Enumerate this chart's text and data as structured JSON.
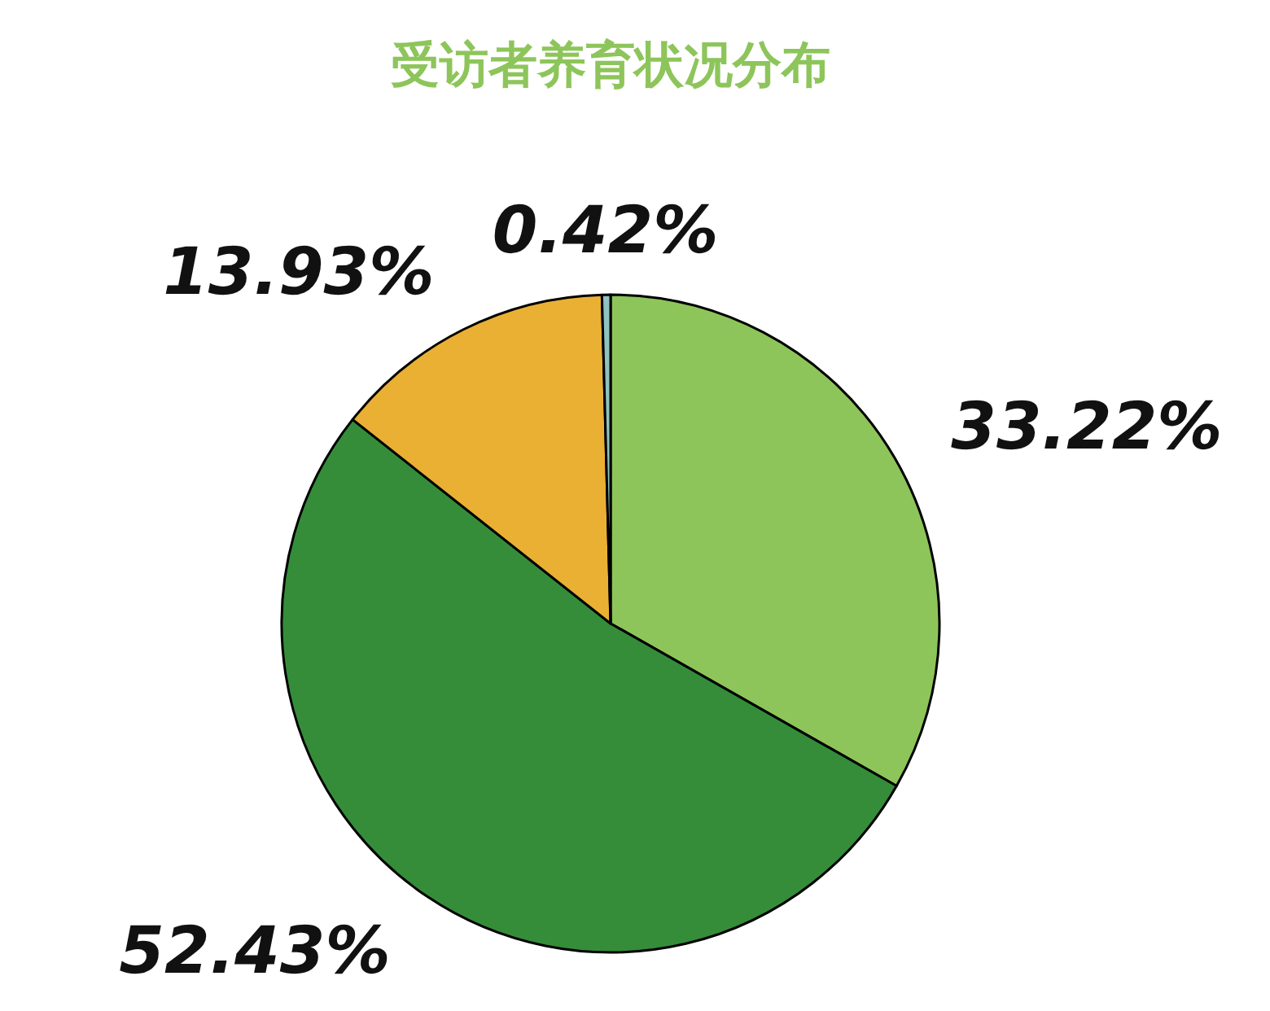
{
  "chart_data": {
    "type": "pie",
    "title": "受访者养育状况分布",
    "categories": [
      null,
      null,
      null,
      null
    ],
    "values": [
      33.22,
      52.43,
      13.93,
      0.42
    ],
    "value_labels": [
      "33.22%",
      "52.43%",
      "13.93%",
      "0.42%"
    ],
    "colors": [
      "#8dc55a",
      "#358d3a",
      "#eab034",
      "#8fc2c0"
    ]
  }
}
